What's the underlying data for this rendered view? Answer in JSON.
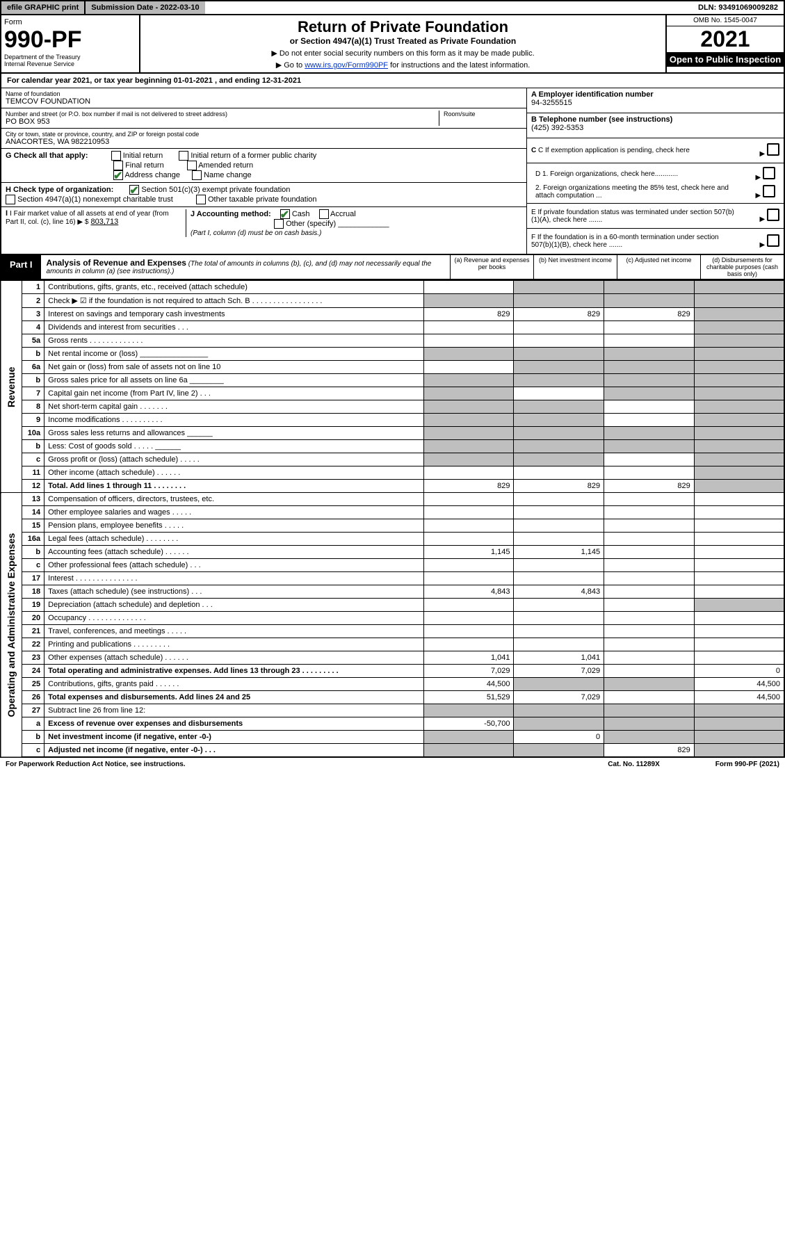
{
  "topbar": {
    "efile": "efile GRAPHIC print",
    "subdate_label": "Submission Date - 2022-03-10",
    "dln": "DLN: 93491069009282"
  },
  "header": {
    "form_word": "Form",
    "form_num": "990-PF",
    "dept": "Department of the Treasury",
    "irs": "Internal Revenue Service",
    "title": "Return of Private Foundation",
    "subtitle": "or Section 4947(a)(1) Trust Treated as Private Foundation",
    "inst1": "▶ Do not enter social security numbers on this form as it may be made public.",
    "inst2_pre": "▶ Go to ",
    "inst2_link": "www.irs.gov/Form990PF",
    "inst2_post": " for instructions and the latest information.",
    "omb": "OMB No. 1545-0047",
    "year": "2021",
    "open": "Open to Public Inspection"
  },
  "cal": "For calendar year 2021, or tax year beginning 01-01-2021          , and ending 12-31-2021",
  "info": {
    "name_label": "Name of foundation",
    "name": "TEMCOV FOUNDATION",
    "addr_label": "Number and street (or P.O. box number if mail is not delivered to street address)",
    "addr": "PO BOX 953",
    "room_label": "Room/suite",
    "city_label": "City or town, state or province, country, and ZIP or foreign postal code",
    "city": "ANACORTES, WA  982210953",
    "g_label": "G Check all that apply:",
    "g_opts": [
      "Initial return",
      "Initial return of a former public charity",
      "Final return",
      "Amended return",
      "Address change",
      "Name change"
    ],
    "h_label": "H Check type of organization:",
    "h_opts": [
      "Section 501(c)(3) exempt private foundation",
      "Section 4947(a)(1) nonexempt charitable trust",
      "Other taxable private foundation"
    ],
    "i_label": "I Fair market value of all assets at end of year (from Part II, col. (c), line 16) ▶ $",
    "i_val": "803,713",
    "j_label": "J Accounting method:",
    "j_opts": [
      "Cash",
      "Accrual",
      "Other (specify)"
    ],
    "j_note": "(Part I, column (d) must be on cash basis.)",
    "a_label": "A Employer identification number",
    "a_val": "94-3255515",
    "b_label": "B Telephone number (see instructions)",
    "b_val": "(425) 392-5353",
    "c_label": "C If exemption application is pending, check here",
    "d1": "D 1. Foreign organizations, check here............",
    "d2": "2. Foreign organizations meeting the 85% test, check here and attach computation ...",
    "e_label": "E If private foundation status was terminated under section 507(b)(1)(A), check here .......",
    "f_label": "F If the foundation is in a 60-month termination under section 507(b)(1)(B), check here ......."
  },
  "part1": {
    "tag": "Part I",
    "title": "Analysis of Revenue and Expenses",
    "note": "(The total of amounts in columns (b), (c), and (d) may not necessarily equal the amounts in column (a) (see instructions).)",
    "cols": {
      "a": "(a) Revenue and expenses per books",
      "b": "(b) Net investment income",
      "c": "(c) Adjusted net income",
      "d": "(d) Disbursements for charitable purposes (cash basis only)"
    }
  },
  "sides": {
    "rev": "Revenue",
    "exp": "Operating and Administrative Expenses"
  },
  "rows": [
    {
      "n": "1",
      "d": "Contributions, gifts, grants, etc., received (attach schedule)",
      "a": "",
      "b": "grey",
      "c": "grey",
      "dcol": "grey"
    },
    {
      "n": "2",
      "d": "Check ▶ ☑ if the foundation is not required to attach Sch. B   . . . . . . . . . . . . . . . . .",
      "a": "grey",
      "b": "grey",
      "c": "grey",
      "dcol": "grey"
    },
    {
      "n": "3",
      "d": "Interest on savings and temporary cash investments",
      "a": "829",
      "b": "829",
      "c": "829",
      "dcol": "grey"
    },
    {
      "n": "4",
      "d": "Dividends and interest from securities   . . .",
      "a": "",
      "b": "",
      "c": "",
      "dcol": "grey"
    },
    {
      "n": "5a",
      "d": "Gross rents   . . . . . . . . . . . . .",
      "a": "",
      "b": "",
      "c": "",
      "dcol": "grey"
    },
    {
      "n": "b",
      "d": "Net rental income or (loss) ________________",
      "a": "grey",
      "b": "grey",
      "c": "grey",
      "dcol": "grey"
    },
    {
      "n": "6a",
      "d": "Net gain or (loss) from sale of assets not on line 10",
      "a": "",
      "b": "grey",
      "c": "grey",
      "dcol": "grey"
    },
    {
      "n": "b",
      "d": "Gross sales price for all assets on line 6a ________",
      "a": "grey",
      "b": "grey",
      "c": "grey",
      "dcol": "grey"
    },
    {
      "n": "7",
      "d": "Capital gain net income (from Part IV, line 2)   . . .",
      "a": "grey",
      "b": "",
      "c": "grey",
      "dcol": "grey"
    },
    {
      "n": "8",
      "d": "Net short-term capital gain   . . . . . . .",
      "a": "grey",
      "b": "grey",
      "c": "",
      "dcol": "grey"
    },
    {
      "n": "9",
      "d": "Income modifications   . . . . . . . . . .",
      "a": "grey",
      "b": "grey",
      "c": "",
      "dcol": "grey"
    },
    {
      "n": "10a",
      "d": "Gross sales less returns and allowances  ______",
      "a": "grey",
      "b": "grey",
      "c": "grey",
      "dcol": "grey"
    },
    {
      "n": "b",
      "d": "Less: Cost of goods sold   . . . . .  ______",
      "a": "grey",
      "b": "grey",
      "c": "grey",
      "dcol": "grey"
    },
    {
      "n": "c",
      "d": "Gross profit or (loss) (attach schedule)   . . . . .",
      "a": "grey",
      "b": "grey",
      "c": "",
      "dcol": "grey"
    },
    {
      "n": "11",
      "d": "Other income (attach schedule)   . . . . . .",
      "a": "",
      "b": "",
      "c": "",
      "dcol": "grey"
    },
    {
      "n": "12",
      "d": "Total. Add lines 1 through 11   . . . . . . . .",
      "a": "829",
      "b": "829",
      "c": "829",
      "dcol": "grey",
      "bold": true
    },
    {
      "n": "13",
      "d": "Compensation of officers, directors, trustees, etc.",
      "a": "",
      "b": "",
      "c": "",
      "dcol": ""
    },
    {
      "n": "14",
      "d": "Other employee salaries and wages   . . . . .",
      "a": "",
      "b": "",
      "c": "",
      "dcol": ""
    },
    {
      "n": "15",
      "d": "Pension plans, employee benefits   . . . . .",
      "a": "",
      "b": "",
      "c": "",
      "dcol": ""
    },
    {
      "n": "16a",
      "d": "Legal fees (attach schedule)   . . . . . . . .",
      "a": "",
      "b": "",
      "c": "",
      "dcol": ""
    },
    {
      "n": "b",
      "d": "Accounting fees (attach schedule)   . . . . . .",
      "a": "1,145",
      "b": "1,145",
      "c": "",
      "dcol": ""
    },
    {
      "n": "c",
      "d": "Other professional fees (attach schedule)   . . .",
      "a": "",
      "b": "",
      "c": "",
      "dcol": ""
    },
    {
      "n": "17",
      "d": "Interest   . . . . . . . . . . . . . . .",
      "a": "",
      "b": "",
      "c": "",
      "dcol": ""
    },
    {
      "n": "18",
      "d": "Taxes (attach schedule) (see instructions)   . . .",
      "a": "4,843",
      "b": "4,843",
      "c": "",
      "dcol": ""
    },
    {
      "n": "19",
      "d": "Depreciation (attach schedule) and depletion   . . .",
      "a": "",
      "b": "",
      "c": "",
      "dcol": "grey"
    },
    {
      "n": "20",
      "d": "Occupancy   . . . . . . . . . . . . . .",
      "a": "",
      "b": "",
      "c": "",
      "dcol": ""
    },
    {
      "n": "21",
      "d": "Travel, conferences, and meetings   . . . . .",
      "a": "",
      "b": "",
      "c": "",
      "dcol": ""
    },
    {
      "n": "22",
      "d": "Printing and publications   . . . . . . . . .",
      "a": "",
      "b": "",
      "c": "",
      "dcol": ""
    },
    {
      "n": "23",
      "d": "Other expenses (attach schedule)   . . . . . .",
      "a": "1,041",
      "b": "1,041",
      "c": "",
      "dcol": ""
    },
    {
      "n": "24",
      "d": "Total operating and administrative expenses. Add lines 13 through 23   . . . . . . . . .",
      "a": "7,029",
      "b": "7,029",
      "c": "",
      "dcol": "0",
      "bold": true
    },
    {
      "n": "25",
      "d": "Contributions, gifts, grants paid   . . . . . .",
      "a": "44,500",
      "b": "grey",
      "c": "grey",
      "dcol": "44,500"
    },
    {
      "n": "26",
      "d": "Total expenses and disbursements. Add lines 24 and 25",
      "a": "51,529",
      "b": "7,029",
      "c": "",
      "dcol": "44,500",
      "bold": true
    },
    {
      "n": "27",
      "d": "Subtract line 26 from line 12:",
      "a": "grey",
      "b": "grey",
      "c": "grey",
      "dcol": "grey"
    },
    {
      "n": "a",
      "d": "Excess of revenue over expenses and disbursements",
      "a": "-50,700",
      "b": "grey",
      "c": "grey",
      "dcol": "grey",
      "bold": true
    },
    {
      "n": "b",
      "d": "Net investment income (if negative, enter -0-)",
      "a": "grey",
      "b": "0",
      "c": "grey",
      "dcol": "grey",
      "bold": true
    },
    {
      "n": "c",
      "d": "Adjusted net income (if negative, enter -0-)   . . .",
      "a": "grey",
      "b": "grey",
      "c": "829",
      "dcol": "grey",
      "bold": true
    }
  ],
  "footer": {
    "left": "For Paperwork Reduction Act Notice, see instructions.",
    "mid": "Cat. No. 11289X",
    "right": "Form 990-PF (2021)"
  }
}
